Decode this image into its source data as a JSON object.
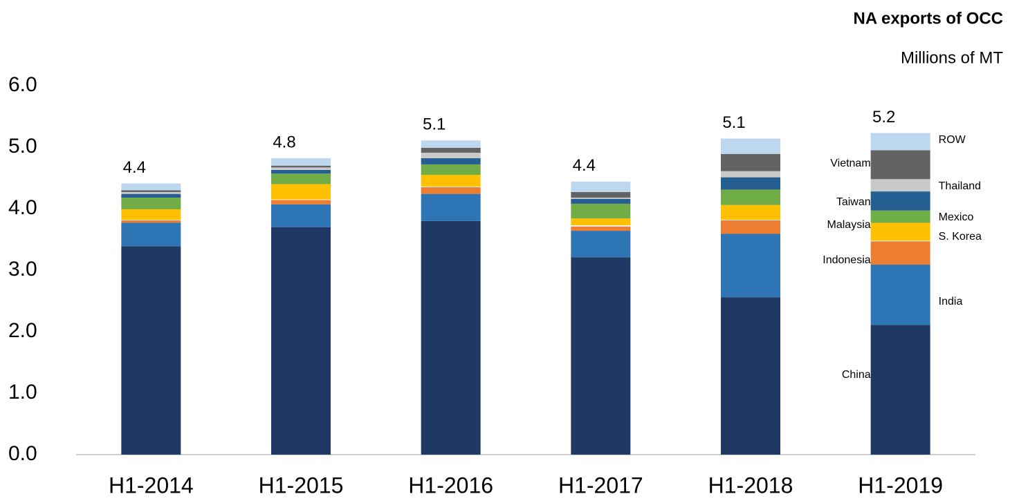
{
  "chart_data": {
    "type": "stacked_bar",
    "title": "NA exports of OCC",
    "subtitle": "Millions of MT",
    "categories": [
      "H1-2014",
      "H1-2015",
      "H1-2016",
      "H1-2017",
      "H1-2018",
      "H1-2019"
    ],
    "series": [
      {
        "name": "China",
        "color": "#203864",
        "values": [
          3.39,
          3.7,
          3.8,
          3.21,
          2.56,
          2.11
        ]
      },
      {
        "name": "India",
        "color": "#2e75b6",
        "values": [
          0.38,
          0.37,
          0.44,
          0.43,
          1.03,
          0.98
        ]
      },
      {
        "name": "Indonesia",
        "color": "#ed7d31",
        "values": [
          0.04,
          0.07,
          0.11,
          0.07,
          0.22,
          0.38
        ]
      },
      {
        "name": "Malaysia",
        "color": "#f2f2f2",
        "values": [
          0.01,
          0.01,
          0.01,
          0.02,
          0.01,
          0.01
        ]
      },
      {
        "name": "S. Korea",
        "color": "#ffc000",
        "values": [
          0.17,
          0.25,
          0.19,
          0.11,
          0.24,
          0.29
        ]
      },
      {
        "name": "Mexico",
        "color": "#70ad47",
        "values": [
          0.19,
          0.17,
          0.17,
          0.24,
          0.25,
          0.2
        ]
      },
      {
        "name": "Taiwan",
        "color": "#255e91",
        "values": [
          0.06,
          0.06,
          0.1,
          0.08,
          0.2,
          0.31
        ]
      },
      {
        "name": "Thailand",
        "color": "#c9c9c9",
        "values": [
          0.03,
          0.04,
          0.09,
          0.02,
          0.1,
          0.2
        ]
      },
      {
        "name": "Vietnam",
        "color": "#636363",
        "values": [
          0.03,
          0.03,
          0.08,
          0.09,
          0.28,
          0.47
        ]
      },
      {
        "name": "ROW",
        "color": "#bdd7ee",
        "values": [
          0.11,
          0.12,
          0.12,
          0.17,
          0.25,
          0.28
        ]
      }
    ],
    "totals": [
      4.4,
      4.8,
      5.1,
      4.4,
      5.1,
      5.2
    ],
    "ylim": [
      0,
      6
    ],
    "yticks": [
      {
        "value": 0,
        "label": "0.0"
      },
      {
        "value": 1,
        "label": "1.0"
      },
      {
        "value": 2,
        "label": "2.0"
      },
      {
        "value": 3,
        "label": "3.0"
      },
      {
        "value": 4,
        "label": "4.0"
      },
      {
        "value": 5,
        "label": "5.0"
      },
      {
        "value": 6,
        "label": "6.0"
      }
    ],
    "grid": false
  }
}
